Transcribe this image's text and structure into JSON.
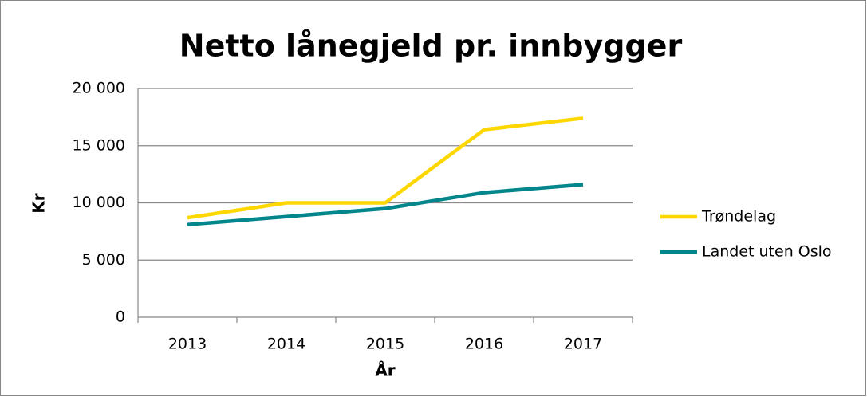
{
  "chart_data": {
    "type": "line",
    "title": "Netto lånegjeld pr. innbygger",
    "x_label": "År",
    "y_label": "Kr",
    "categories": [
      "2013",
      "2014",
      "2015",
      "2016",
      "2017"
    ],
    "series": [
      {
        "name": "Trøndelag",
        "color": "#ffd700",
        "values": [
          8700,
          10000,
          10000,
          16400,
          17400
        ]
      },
      {
        "name": "Landet uten Oslo",
        "color": "#00868b",
        "values": [
          8100,
          8800,
          9500,
          10900,
          11600
        ]
      }
    ],
    "ylim": [
      0,
      20000
    ],
    "yticks": [
      0,
      {
        "value": 5000,
        "label": "5 000"
      },
      {
        "value": 10000,
        "label": "10 000"
      },
      {
        "value": 15000,
        "label": "15 000"
      },
      {
        "value": 20000,
        "label": "20 000"
      }
    ],
    "grid": true,
    "legend": "right"
  }
}
